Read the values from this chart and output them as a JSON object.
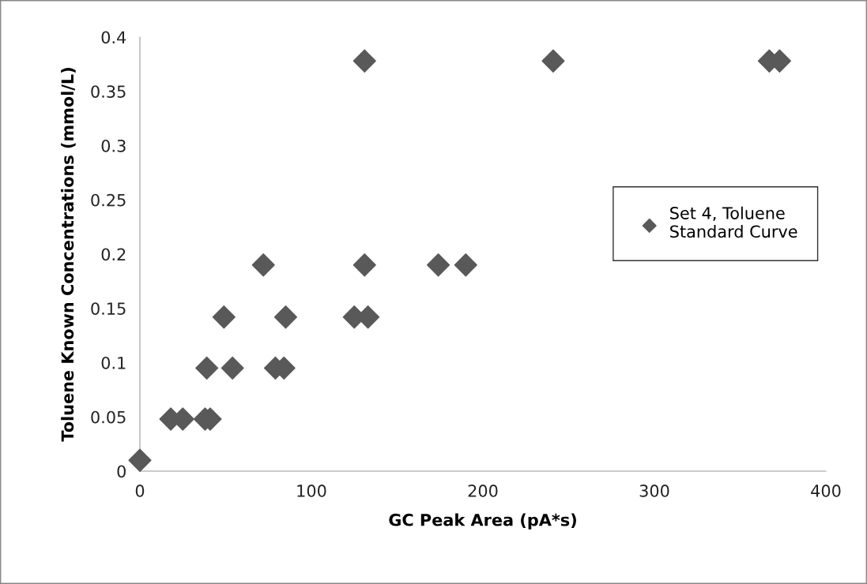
{
  "chart_data": {
    "type": "scatter",
    "xlabel": "GC Peak Area (pA*s)",
    "ylabel": "Toluene Known Concentrations (mmol/L)",
    "xlim": [
      0,
      400
    ],
    "xticks": [
      0,
      100,
      200,
      300,
      400
    ],
    "ylim": [
      0,
      0.4
    ],
    "yticks": [
      0,
      0.05,
      0.1,
      0.15,
      0.2,
      0.25,
      0.3,
      0.35,
      0.4
    ],
    "grid": false,
    "legend": "right",
    "marker": "diamond",
    "series": [
      {
        "name": "Set 4, Toluene\nStandard Curve",
        "color": "#595959",
        "x": [
          0,
          18,
          25,
          38,
          41,
          39,
          54,
          79,
          84,
          49,
          85,
          125,
          133,
          72,
          131,
          174,
          190,
          131,
          241,
          367,
          373
        ],
        "values": [
          0.01,
          0.048,
          0.048,
          0.048,
          0.048,
          0.095,
          0.095,
          0.095,
          0.095,
          0.142,
          0.142,
          0.142,
          0.142,
          0.19,
          0.19,
          0.19,
          0.19,
          0.378,
          0.378,
          0.378,
          0.378
        ]
      }
    ]
  }
}
